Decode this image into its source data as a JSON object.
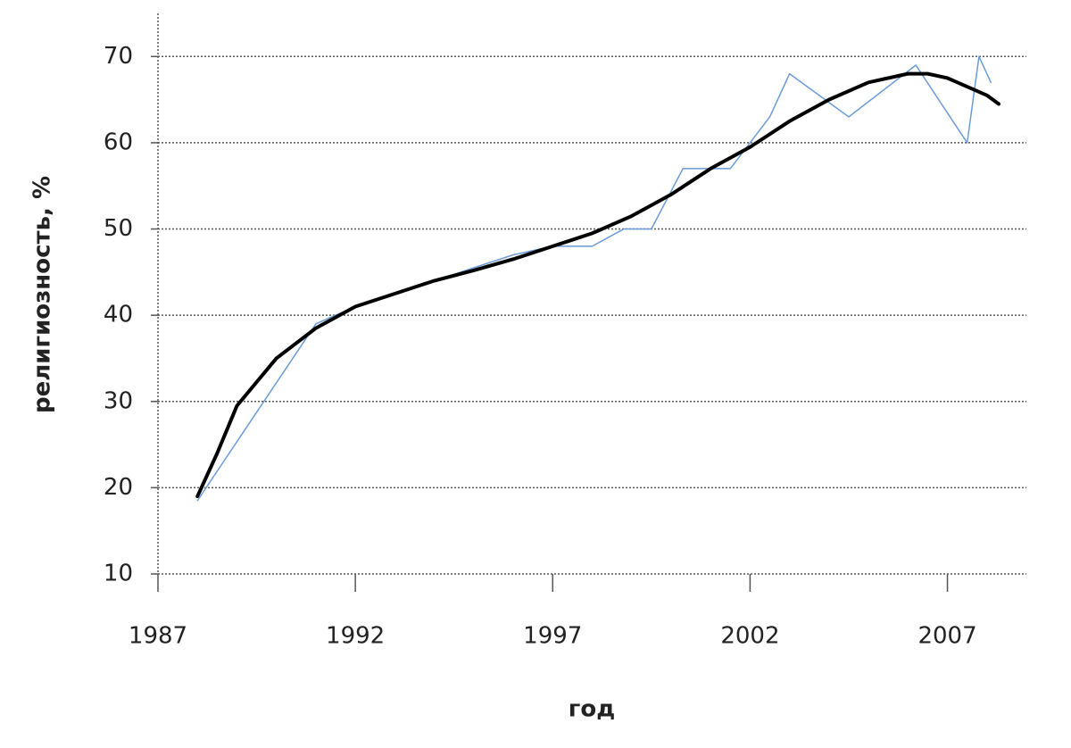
{
  "chart_data": {
    "type": "line",
    "x_label": "год",
    "y_label": "религиозность, %",
    "series": [
      {
        "color": "#6a9bd8",
        "width": 1.5,
        "x": [
          1988,
          1991,
          1992,
          1993,
          1994,
          1995,
          1996,
          1997,
          1998,
          1998.8,
          1999.5,
          2000.3,
          2001.5,
          2002,
          2002.5,
          2003,
          2004.5,
          2006.2,
          2007.5,
          2007.8,
          2008.1
        ],
        "values": [
          18.5,
          39,
          41,
          42.5,
          44,
          45.5,
          47,
          48,
          48,
          50,
          50,
          57,
          57,
          60,
          63,
          68,
          63,
          69,
          60,
          70,
          67
        ]
      },
      {
        "color": "#000000",
        "width": 4,
        "x": [
          1988,
          1988.5,
          1989,
          1990,
          1991,
          1992,
          1993,
          1994,
          1995,
          1996,
          1997,
          1998,
          1999,
          2000,
          2001,
          2002,
          2003,
          2004,
          2005,
          2006,
          2006.5,
          2007,
          2008,
          2008.3
        ],
        "values": [
          19,
          24,
          29.5,
          35,
          38.5,
          41,
          42.5,
          44,
          45.2,
          46.5,
          48,
          49.5,
          51.5,
          54,
          57,
          59.5,
          62.5,
          65,
          67,
          68,
          68,
          67.5,
          65.5,
          64.5
        ]
      }
    ],
    "xlim": [
      1987,
      2009
    ],
    "xticks": [
      1987,
      1992,
      1997,
      2002,
      2007
    ],
    "ylim": [
      10,
      75
    ],
    "yticks": [
      10,
      20,
      30,
      40,
      50,
      60,
      70
    ],
    "grid": true
  }
}
